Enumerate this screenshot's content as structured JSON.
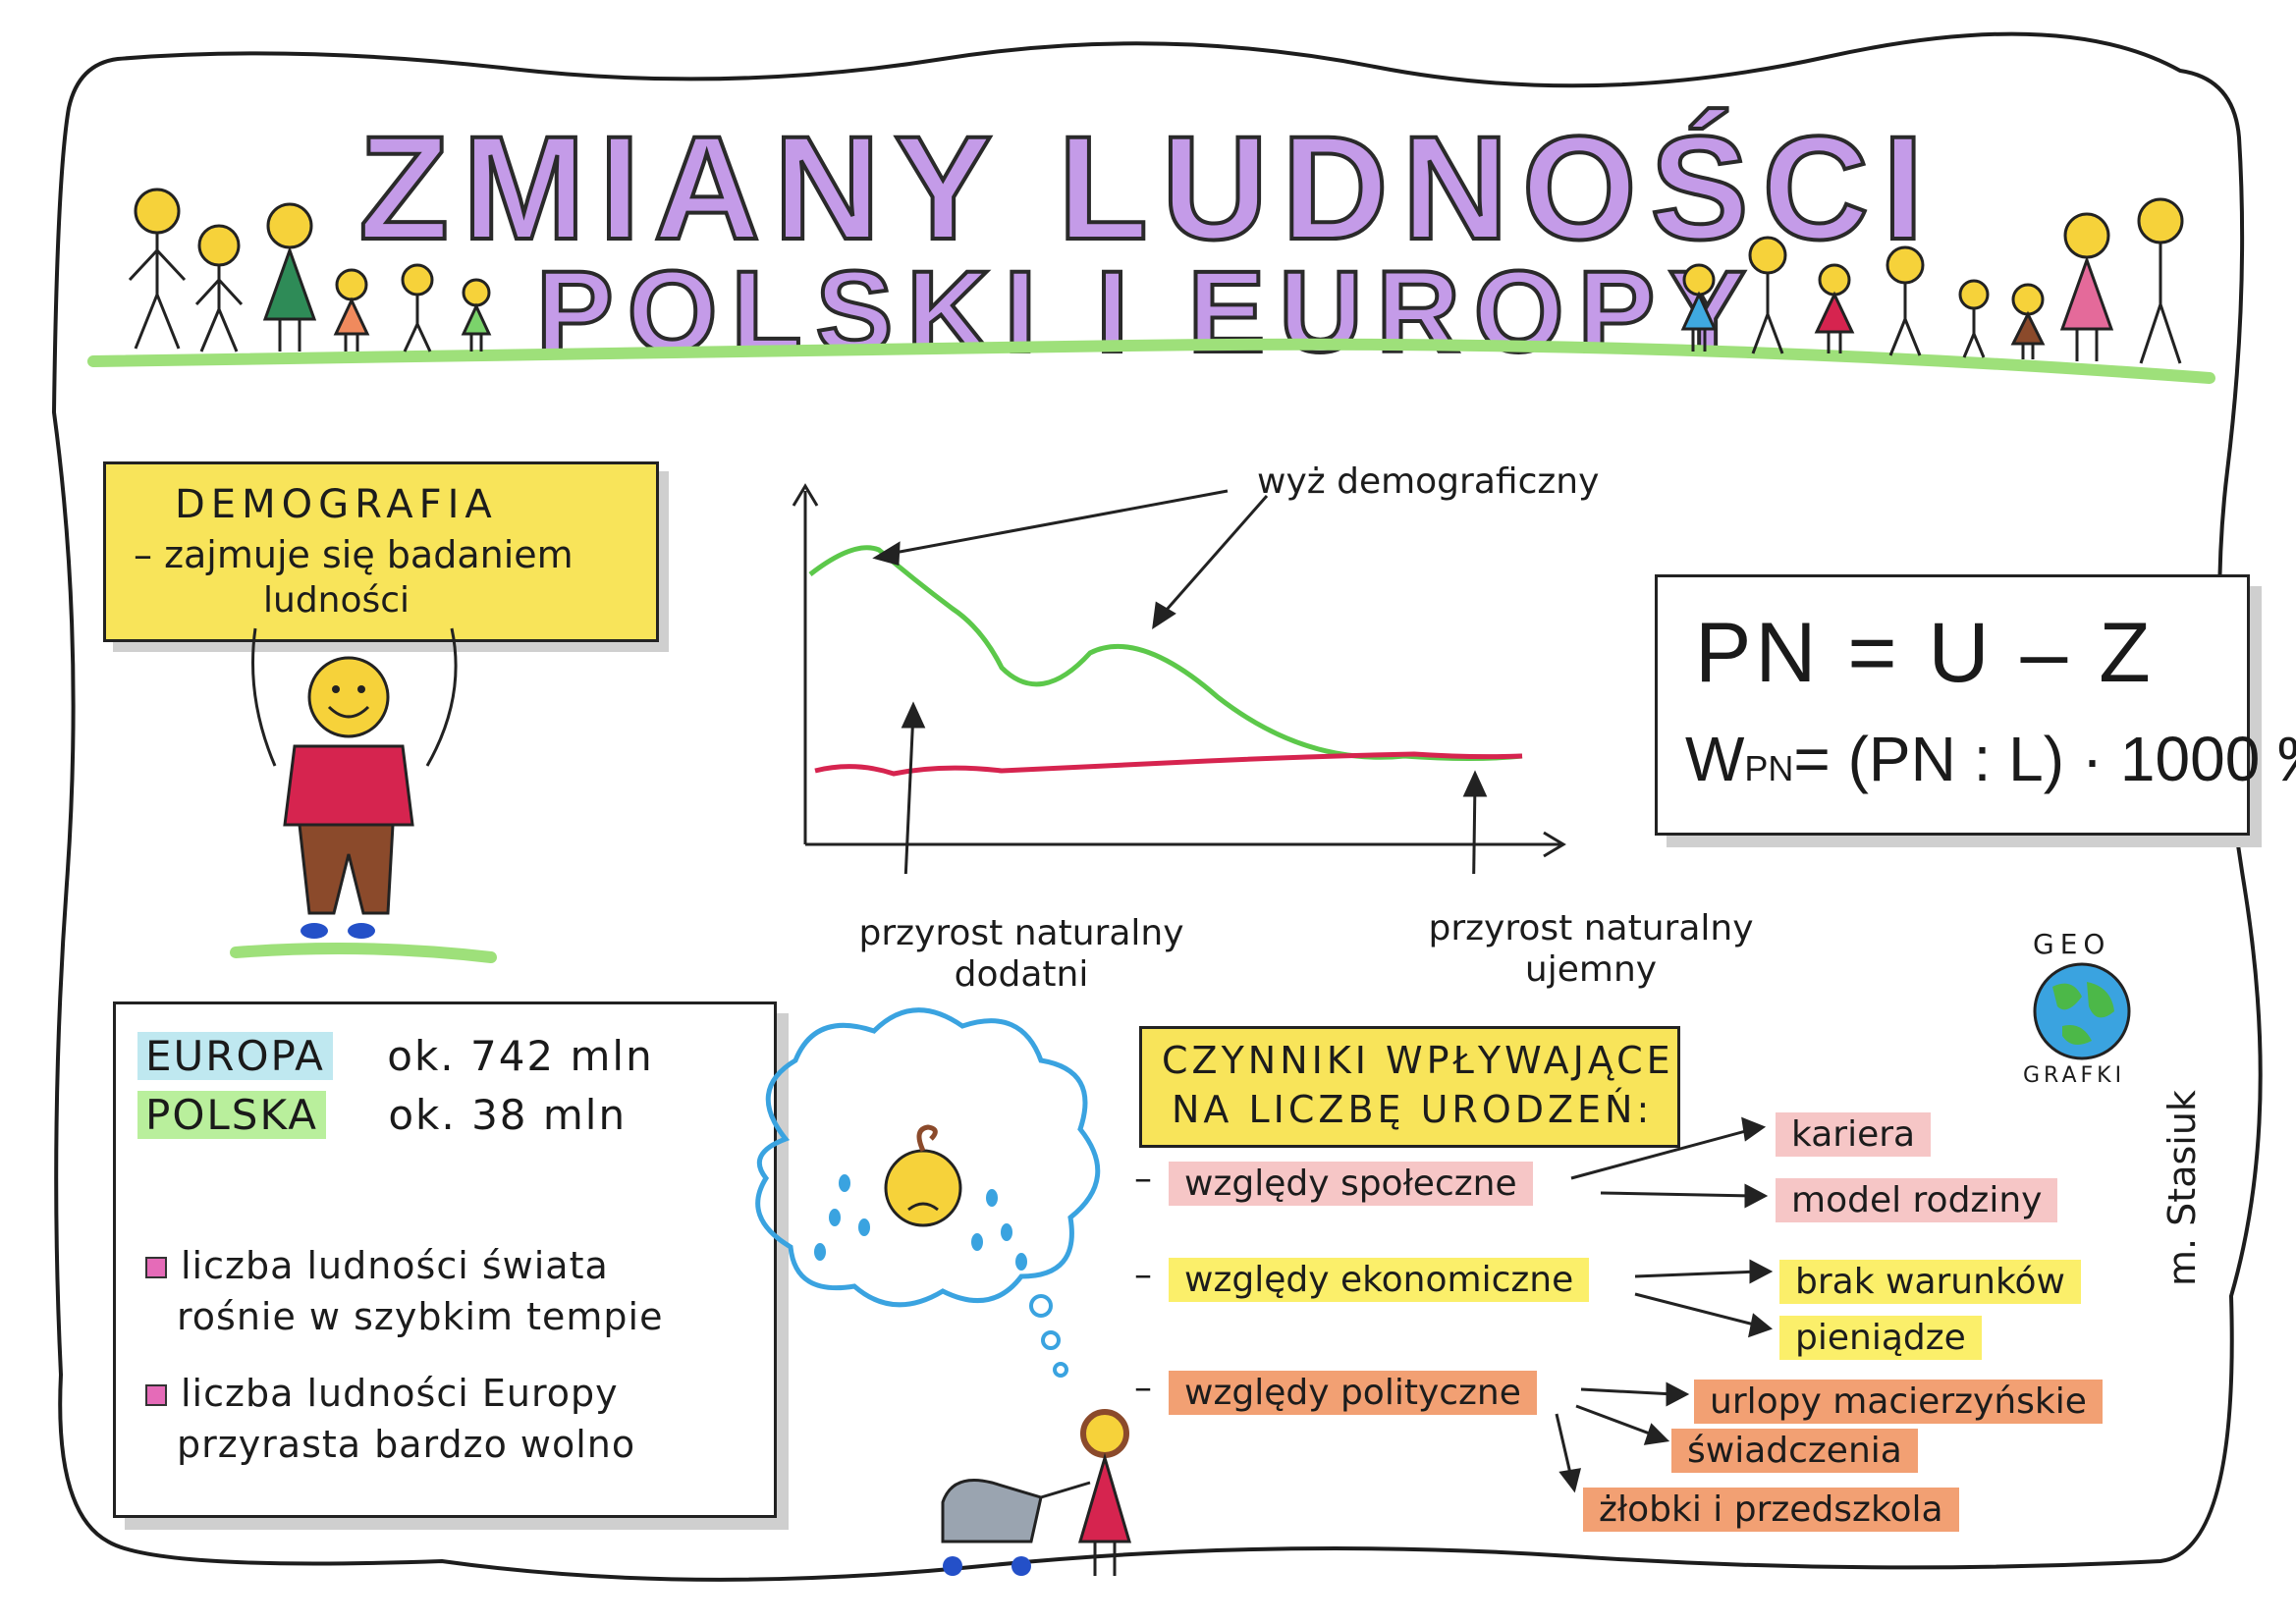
{
  "title": {
    "line1": "ZMIANY LUDNOŚCI",
    "line2": "POLSKI I EUROPY"
  },
  "demografia": {
    "heading": "DEMOGRAFIA",
    "definition": "– zajmuje się badaniem",
    "definition2": "ludności"
  },
  "chart": {
    "label_wyz": "wyż demograficzny",
    "label_positive_1": "przyrost naturalny",
    "label_positive_2": "dodatni",
    "label_negative_1": "przyrost naturalny",
    "label_negative_2": "ujemny",
    "colors": {
      "births": "#5cc84a",
      "deaths": "#d6244f"
    }
  },
  "formulas": {
    "f1": "PN = U – Z",
    "f2_w": "W",
    "f2_sub": "PN",
    "f2_rest": "= (PN : L) · 1000 ‰"
  },
  "population": {
    "europe_label": "EUROPA",
    "europe_value": "ok. 742 mln",
    "poland_label": "POLSKA",
    "poland_value": "ok. 38 mln",
    "bullet1_a": "liczba ludności świata",
    "bullet1_b": "rośnie w szybkim tempie",
    "bullet2_a": "liczba ludności Europy",
    "bullet2_b": "przyrasta bardzo wolno"
  },
  "factors": {
    "heading1": "CZYNNIKI WPŁYWAJĄCE",
    "heading2": "NA LICZBĘ URODZEŃ:",
    "social": "względy społeczne",
    "social_items": [
      "kariera",
      "model rodziny"
    ],
    "economic": "względy ekonomiczne",
    "economic_items": [
      "brak warunków",
      "pieniądze"
    ],
    "political": "względy polityczne",
    "political_items": [
      "urlopy macierzyńskie",
      "świadczenia",
      "żłobki i przedszkola"
    ]
  },
  "logo": {
    "top": "GEO",
    "bottom": "GRAFKI"
  },
  "signature": "m. Stasiuk"
}
